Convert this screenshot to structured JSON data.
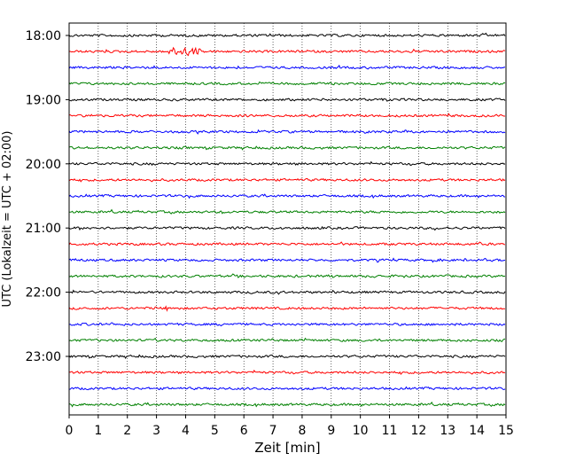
{
  "chart_data": {
    "type": "line",
    "xlabel": "Zeit  [min]",
    "ylabel": "UTC (Lokalzeit = UTC + 02:00)",
    "xlim": [
      0,
      15
    ],
    "xticks": [
      0,
      1,
      2,
      3,
      4,
      5,
      6,
      7,
      8,
      9,
      10,
      11,
      12,
      13,
      14,
      15
    ],
    "xtick_labels": [
      "0",
      "1",
      "2",
      "3",
      "4",
      "5",
      "6",
      "7",
      "8",
      "9",
      "10",
      "11",
      "12",
      "13",
      "14",
      "15"
    ],
    "ytick_labels": [
      "18:00",
      "19:00",
      "20:00",
      "21:00",
      "22:00",
      "23:00"
    ],
    "grid": "vertical dotted lines at each minute",
    "trace_interval_min": 15,
    "trace_start": "18:00",
    "trace_end": "23:45",
    "trace_count": 24,
    "trace_colors": [
      "#000000",
      "#ff0000",
      "#0000ff",
      "#008000"
    ],
    "events": [
      {
        "trace": 1,
        "x_start": 3.4,
        "x_end": 4.5,
        "amplitude": "large"
      },
      {
        "trace": 12,
        "x_start": 0.7,
        "x_end": 0.8,
        "amplitude": "small"
      },
      {
        "trace": 17,
        "x_start": 3.3,
        "x_end": 3.5,
        "amplitude": "small"
      }
    ]
  }
}
